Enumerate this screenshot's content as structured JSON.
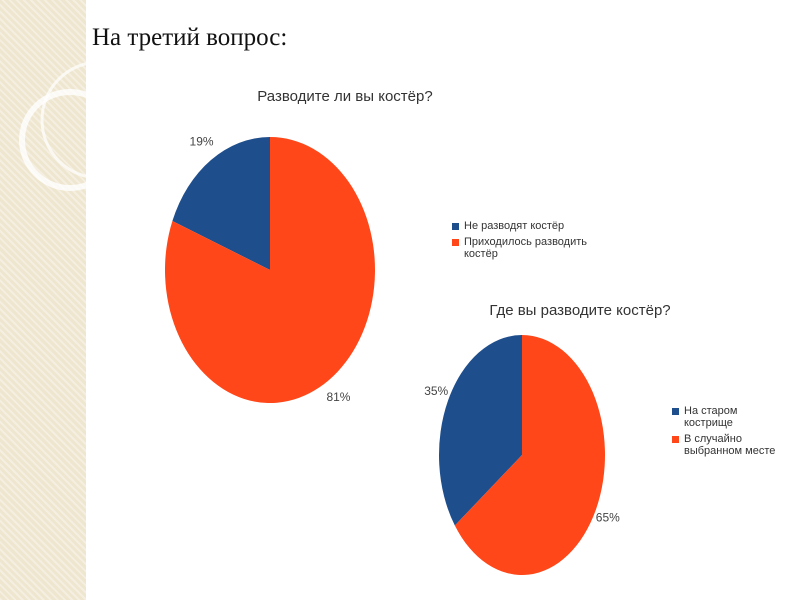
{
  "title": "На третий вопрос:",
  "chart_data": [
    {
      "type": "pie",
      "title": "Разводите ли вы костёр?",
      "categories": [
        "Не разводят костёр",
        "Приходилось разводить костёр"
      ],
      "values": [
        19,
        81
      ],
      "value_labels": [
        "19%",
        "81%"
      ],
      "colors": [
        "#1f4e8c",
        "#ff4719"
      ]
    },
    {
      "type": "pie",
      "title": "Где вы разводите костёр?",
      "categories": [
        "На старом кострище",
        "В случайно выбранном месте"
      ],
      "values": [
        35,
        65
      ],
      "value_labels": [
        "35%",
        "65%"
      ],
      "colors": [
        "#1f4e8c",
        "#ff4719"
      ]
    }
  ]
}
